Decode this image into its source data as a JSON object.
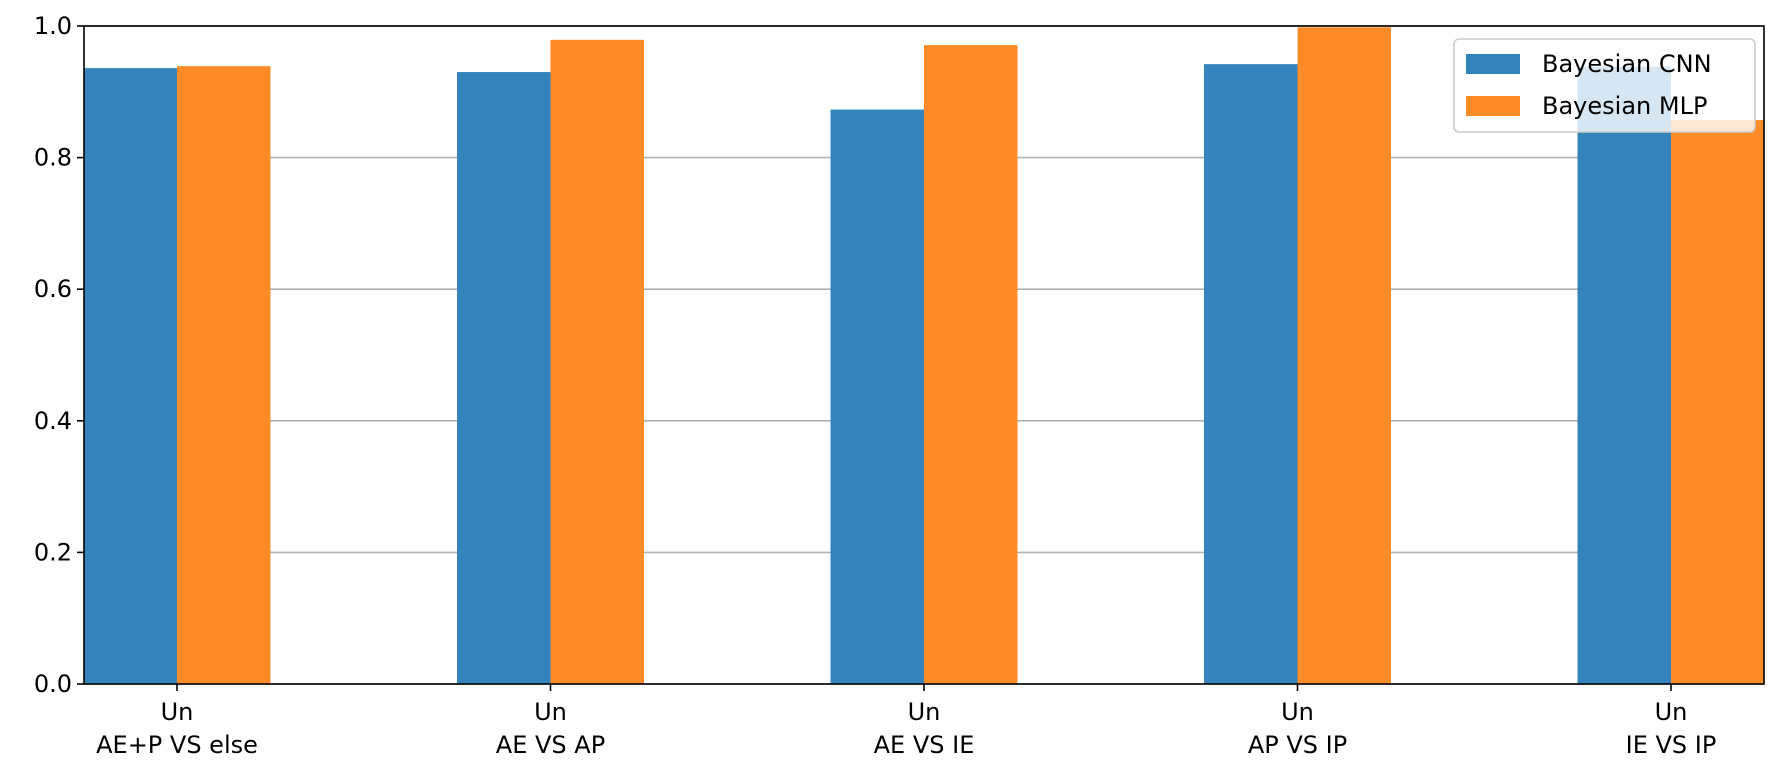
{
  "chart_data": {
    "type": "bar",
    "categories": [
      [
        "Un",
        "AE+P VS else"
      ],
      [
        "Un",
        "AE VS AP"
      ],
      [
        "Un",
        "AE VS IE"
      ],
      [
        "Un",
        "AP VS IP"
      ],
      [
        "Un",
        "IE VS IP"
      ]
    ],
    "series": [
      {
        "name": "Bayesian CNN",
        "color": "#3583bc",
        "values": [
          0.936,
          0.93,
          0.873,
          0.942,
          0.938
        ]
      },
      {
        "name": "Bayesian MLP",
        "color": "#fd8c28",
        "values": [
          0.939,
          0.979,
          0.971,
          0.998,
          0.857
        ]
      }
    ],
    "title": "",
    "xlabel": "",
    "ylabel": "",
    "ylim": [
      0,
      1.0
    ],
    "yticks": [
      "0.0",
      "0.2",
      "0.4",
      "0.6",
      "0.8",
      "1.0"
    ],
    "grid": "y",
    "legend": "top-right"
  }
}
